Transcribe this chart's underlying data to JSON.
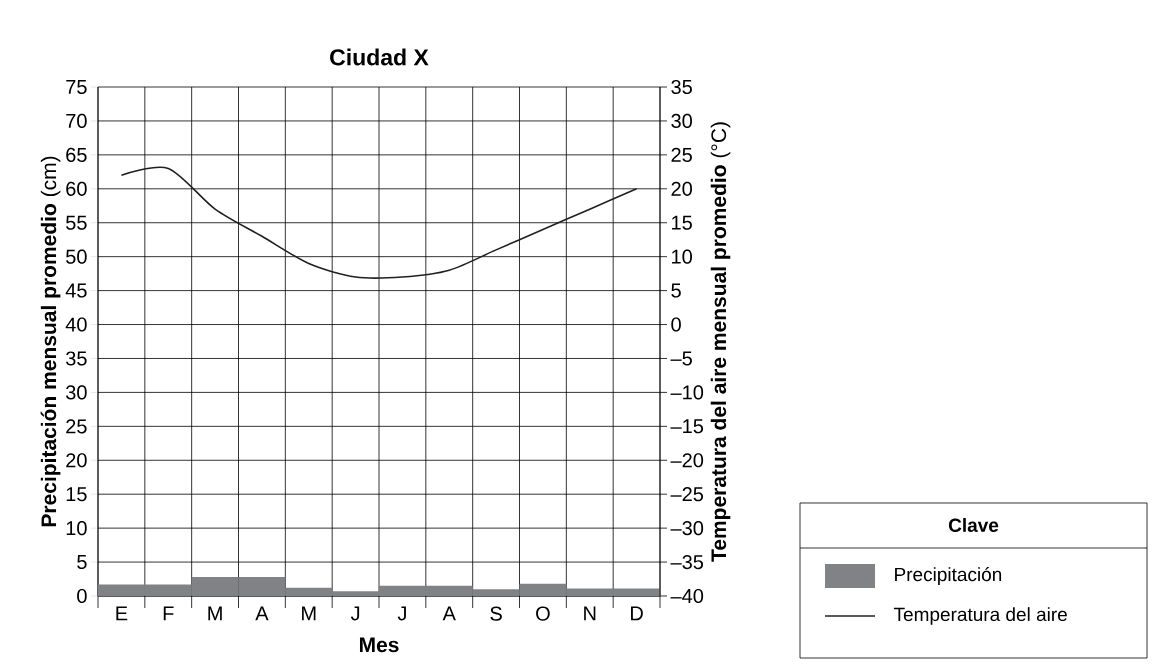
{
  "chart_data": {
    "type": "bar",
    "title": "**Ciudad X**",
    "xlabel": "**Mes**",
    "ylabel": "**Precipitación mensual promedio** (cm)",
    "y2label": "**Temperatura del aire mensual promedio** (°C)",
    "legend_title": "**Clave**",
    "legend": "bottom right",
    "grid": true,
    "categories": [
      "E",
      "F",
      "M",
      "A",
      "M",
      "J",
      "J",
      "A",
      "S",
      "O",
      "N",
      "D"
    ],
    "series": [
      {
        "name": "Precipitación",
        "color": "#808285",
        "values": [
          1.7,
          1.7,
          2.8,
          2.8,
          1.2,
          0.7,
          1.5,
          1.5,
          1.0,
          1.8,
          1.1,
          1.1
        ]
      },
      {
        "name": "Temperatura del aire",
        "type": "line",
        "axis": "y2",
        "color": "#231f20",
        "values": [
          22,
          23,
          17,
          13,
          9,
          7,
          7,
          8,
          11,
          14,
          17,
          20
        ]
      }
    ],
    "ylim": [
      0,
      75
    ],
    "yticks": [
      0,
      5,
      10,
      15,
      20,
      25,
      30,
      35,
      40,
      45,
      50,
      55,
      60,
      65,
      70,
      75
    ],
    "y2lim": [
      -40,
      35
    ],
    "y2ticks": [
      {
        "value": -40,
        "label": "–40"
      },
      {
        "value": -35,
        "label": "–35"
      },
      {
        "value": -30,
        "label": "–30"
      },
      {
        "value": -25,
        "label": "–25"
      },
      {
        "value": -20,
        "label": "–20"
      },
      {
        "value": -15,
        "label": "–15"
      },
      {
        "value": -10,
        "label": "–10"
      },
      {
        "value": -5,
        "label": "–5"
      },
      0,
      5,
      10,
      15,
      20,
      25,
      30,
      35
    ]
  }
}
